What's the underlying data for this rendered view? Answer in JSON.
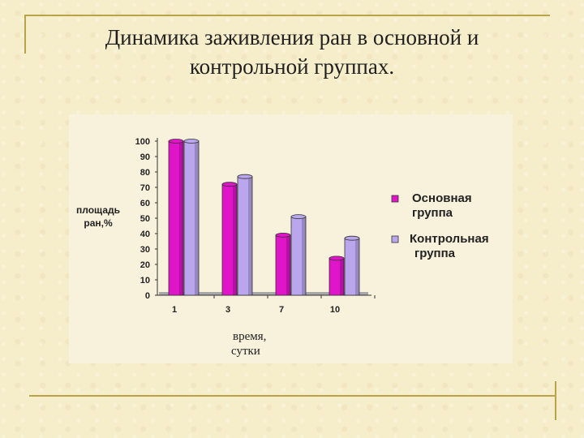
{
  "slide": {
    "title_line1": "Динамика заживления ран в основной и",
    "title_line2": "контрольной группах."
  },
  "colors": {
    "background": "#f6edca",
    "chart_bg": "#f8f1dc",
    "series_main": "#e014c8",
    "series_control": "#b9a6ec",
    "frame": "#b8a24a"
  },
  "chart_data": {
    "type": "bar",
    "categories": [
      "1",
      "3",
      "7",
      "10"
    ],
    "series": [
      {
        "name": "Основная группа",
        "name_lines": [
          "Основная",
          "группа"
        ],
        "values": [
          100,
          72,
          39,
          24
        ]
      },
      {
        "name": "Контрольная группа",
        "name_lines": [
          "Контрольная",
          "группа"
        ],
        "values": [
          100,
          77,
          51,
          37
        ]
      }
    ],
    "ylabel_lines": [
      "площадь",
      "ран,%"
    ],
    "xlabel_lines": [
      "время,",
      "сутки"
    ],
    "ylim": [
      0,
      100
    ],
    "yticks": [
      0,
      10,
      20,
      30,
      40,
      50,
      60,
      70,
      80,
      90,
      100
    ],
    "grid": false,
    "legend_position": "right"
  }
}
